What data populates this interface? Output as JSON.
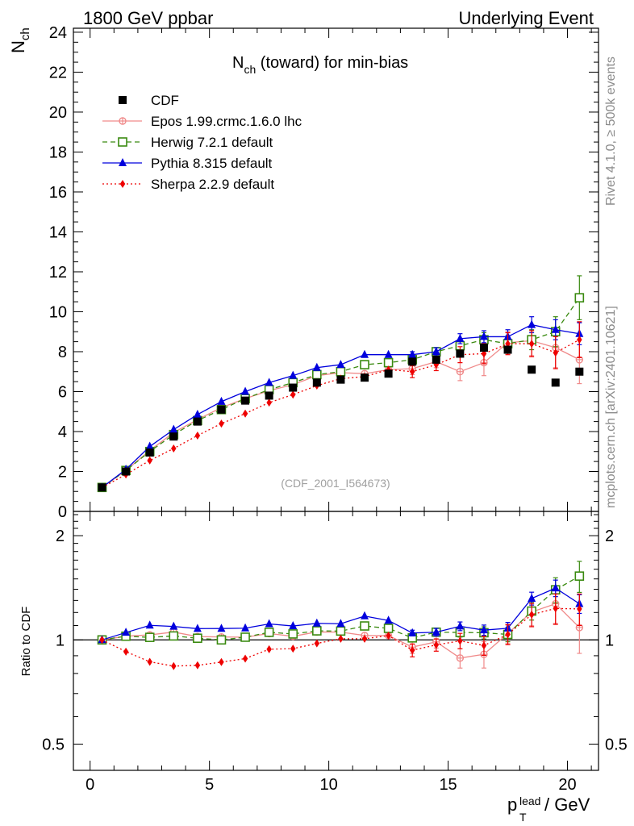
{
  "header": {
    "left": "1800 GeV ppbar",
    "right": "Underlying Event"
  },
  "side": {
    "rivet_prefix": "Rivet 4.1.0, ",
    "rivet_suffix": " 500k events",
    "rivet_geq": "≥",
    "mcplots": "mcplots.cern.ch [arXiv:2401.10621]"
  },
  "y_label": {
    "main": "N",
    "sub": "ch"
  },
  "ratio_y_label": "Ratio to CDF",
  "x_label": {
    "p": "p",
    "sub": "T",
    "sup": "lead",
    "unit": " / GeV"
  },
  "chart_data": {
    "type": "line",
    "title": {
      "main": "N",
      "sub": "ch",
      "rest": " (toward) for min-bias"
    },
    "analysis_id": "(CDF_2001_I564673)",
    "x": [
      0.5,
      1.5,
      2.5,
      3.5,
      4.5,
      5.5,
      6.5,
      7.5,
      8.5,
      9.5,
      10.5,
      11.5,
      12.5,
      13.5,
      14.5,
      15.5,
      16.5,
      17.5,
      18.5,
      19.5,
      20.5
    ],
    "xlim": [
      -0.7,
      21.3
    ],
    "xticks": [
      0,
      5,
      10,
      15,
      20
    ],
    "main": {
      "ylim": [
        0,
        24.2
      ],
      "yticks": [
        0,
        2,
        4,
        6,
        8,
        10,
        12,
        14,
        16,
        18,
        20,
        22,
        24
      ]
    },
    "ratio": {
      "ylim": [
        0.42,
        2.35
      ],
      "yticks": [
        0.5,
        1,
        2
      ],
      "log": true
    },
    "data": {
      "name": "CDF",
      "values": [
        1.2,
        2.0,
        2.95,
        3.75,
        4.5,
        5.1,
        5.55,
        5.8,
        6.2,
        6.45,
        6.6,
        6.7,
        6.9,
        7.5,
        7.6,
        7.9,
        8.2,
        8.1,
        7.1,
        6.45,
        7.0
      ]
    },
    "series": [
      {
        "name": "Epos 1.99.crmc.1.6.0 lhc",
        "color": "#f08a8a",
        "marker": "open-circle-plus",
        "dash": "",
        "values": [
          1.2,
          2.05,
          3.05,
          3.95,
          4.6,
          5.2,
          5.65,
          6.05,
          6.35,
          6.8,
          6.95,
          6.9,
          7.1,
          7.15,
          7.5,
          7.0,
          7.45,
          8.45,
          8.55,
          8.2,
          7.6
        ],
        "errors": [
          0,
          0,
          0,
          0,
          0,
          0,
          0,
          0,
          0,
          0,
          0,
          0,
          0,
          0.3,
          0.3,
          0.45,
          0.65,
          0.55,
          0.75,
          1.0,
          1.2
        ]
      },
      {
        "name": "Herwig 7.2.1 default",
        "color": "#3a8a10",
        "marker": "open-square",
        "dash": "6,4",
        "values": [
          1.2,
          2.05,
          3.0,
          3.85,
          4.55,
          5.1,
          5.65,
          6.1,
          6.45,
          6.85,
          7.0,
          7.35,
          7.45,
          7.6,
          8.0,
          8.3,
          8.6,
          8.4,
          8.6,
          9.0,
          10.7
        ],
        "errors": [
          0,
          0,
          0,
          0,
          0,
          0,
          0,
          0,
          0,
          0,
          0,
          0,
          0,
          0.2,
          0.2,
          0.25,
          0.35,
          0.4,
          0.5,
          0.75,
          1.1
        ]
      },
      {
        "name": "Pythia 8.315 default",
        "color": "#0000dd",
        "marker": "filled-triangle",
        "dash": "",
        "values": [
          1.2,
          2.1,
          3.25,
          4.1,
          4.85,
          5.5,
          6.0,
          6.45,
          6.8,
          7.2,
          7.35,
          7.85,
          7.85,
          7.85,
          8.0,
          8.65,
          8.75,
          8.75,
          9.35,
          9.1,
          8.9
        ],
        "errors": [
          0,
          0,
          0,
          0,
          0,
          0,
          0,
          0,
          0,
          0,
          0,
          0,
          0,
          0.15,
          0.2,
          0.25,
          0.3,
          0.35,
          0.4,
          0.5,
          0.55
        ]
      },
      {
        "name": "Sherpa 2.2.9 default",
        "color": "#ee0000",
        "marker": "filled-diamond",
        "dash": "2,3",
        "values": [
          1.2,
          1.85,
          2.55,
          3.15,
          3.8,
          4.4,
          4.9,
          5.45,
          5.85,
          6.3,
          6.65,
          6.75,
          7.1,
          7.0,
          7.35,
          7.85,
          7.9,
          8.4,
          8.4,
          7.95,
          8.6
        ],
        "errors": [
          0,
          0,
          0,
          0,
          0,
          0,
          0,
          0,
          0,
          0,
          0,
          0,
          0,
          0.3,
          0.3,
          0.4,
          0.5,
          0.55,
          0.65,
          0.8,
          0.9
        ]
      }
    ]
  }
}
